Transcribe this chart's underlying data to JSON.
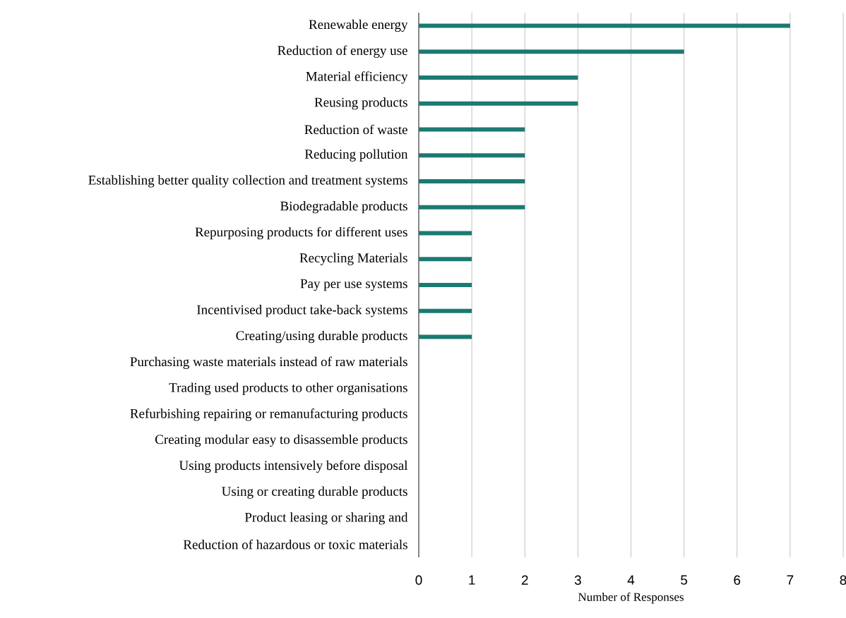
{
  "chart_data": {
    "type": "bar",
    "orientation": "horizontal",
    "xlabel": "Number of Responses",
    "categories": [
      "Renewable energy",
      "Reduction of energy use",
      "Material efficiency",
      "Reusing products",
      "Reduction of waste",
      "Reducing pollution",
      "Establishing better quality collection and treatment systems",
      "Biodegradable products",
      "Repurposing products for different uses",
      "Recycling Materials",
      "Pay per use systems",
      "Incentivised product take-back systems",
      "Creating/using durable products",
      "Purchasing waste materials instead of raw materials",
      "Trading used products to other organisations",
      "Refurbishing repairing or remanufacturing products",
      "Creating modular easy to disassemble products",
      "Using products intensively before disposal",
      "Using or creating durable products",
      "Product leasing or sharing and",
      "Reduction of hazardous or toxic materials"
    ],
    "values": [
      7,
      5,
      3,
      3,
      2,
      2,
      2,
      2,
      1,
      1,
      1,
      1,
      1,
      0,
      0,
      0,
      0,
      0,
      0,
      0,
      0
    ],
    "color": "#1b7a72",
    "xlim": [
      0,
      8
    ],
    "xticks": [
      0,
      1,
      2,
      3,
      4,
      5,
      6,
      7,
      8
    ],
    "grid": "x"
  }
}
